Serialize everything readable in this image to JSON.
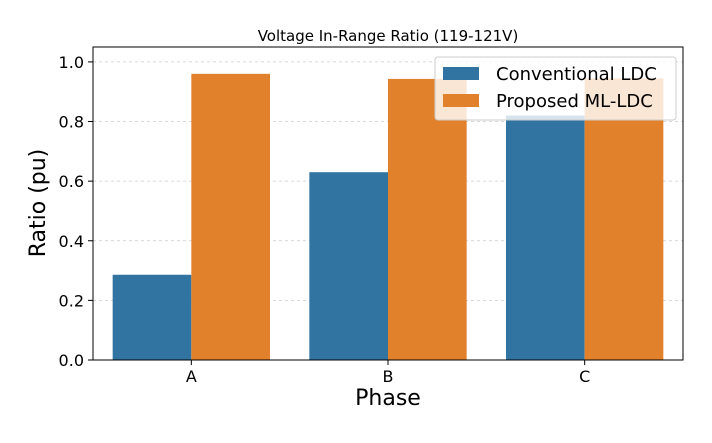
{
  "chart_data": {
    "type": "bar",
    "title": "Voltage In-Range Ratio (119-121V)",
    "xlabel": "Phase",
    "ylabel": "Ratio (pu)",
    "categories": [
      "A",
      "B",
      "C"
    ],
    "series": [
      {
        "name": "Conventional LDC",
        "color": "#3274a1",
        "values": [
          0.286,
          0.63,
          0.82
        ]
      },
      {
        "name": "Proposed ML-LDC",
        "color": "#e1812c",
        "values": [
          0.96,
          0.943,
          0.945
        ]
      }
    ],
    "ylim": [
      0,
      1.05
    ],
    "yticks": [
      0.0,
      0.2,
      0.4,
      0.6,
      0.8,
      1.0
    ],
    "ytick_labels": [
      "0.0",
      "0.2",
      "0.4",
      "0.6",
      "0.8",
      "1.0"
    ],
    "grid": true,
    "legend_position": "top-right"
  }
}
